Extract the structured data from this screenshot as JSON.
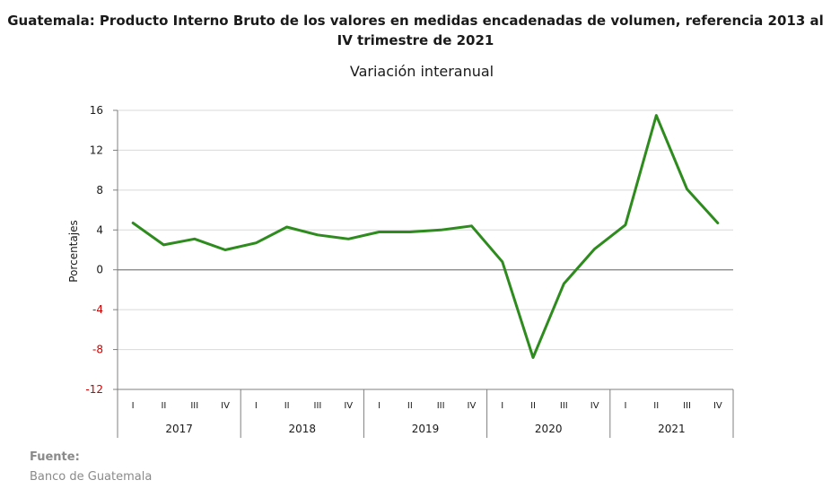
{
  "chart_data": {
    "type": "line",
    "title": "Guatemala: Producto Interno Bruto de los valores en medidas encadenadas  de volumen, referencia 2013 al IV trimestre de 2021",
    "subtitle": "Variación interanual",
    "ylabel": "Porcentajes",
    "xlabel": "",
    "ylim": [
      -12,
      16
    ],
    "yticks": [
      "16",
      "12",
      "8",
      "4",
      "0",
      "-4",
      "-8",
      "-12"
    ],
    "ytick_values": [
      16,
      12,
      8,
      4,
      0,
      -4,
      -8,
      -12
    ],
    "quarters": [
      "I",
      "II",
      "III",
      "IV"
    ],
    "years": [
      "2017",
      "2018",
      "2019",
      "2020",
      "2021"
    ],
    "series": [
      {
        "name": "",
        "color": "#2e8b1e",
        "values": [
          4.7,
          2.5,
          3.1,
          2.0,
          2.7,
          4.3,
          3.5,
          3.1,
          3.8,
          3.8,
          4.0,
          4.4,
          0.8,
          -8.8,
          -1.4,
          2.1,
          4.5,
          15.5,
          8.1,
          4.7
        ]
      }
    ],
    "grid": true,
    "colors": {
      "line": "#2e8b1e",
      "negative_tick": "#cc0000",
      "grid": "#d9d9d9",
      "axis": "#7f7f7f"
    }
  },
  "source": {
    "label": "Fuente:",
    "text": "Banco de Guatemala"
  }
}
